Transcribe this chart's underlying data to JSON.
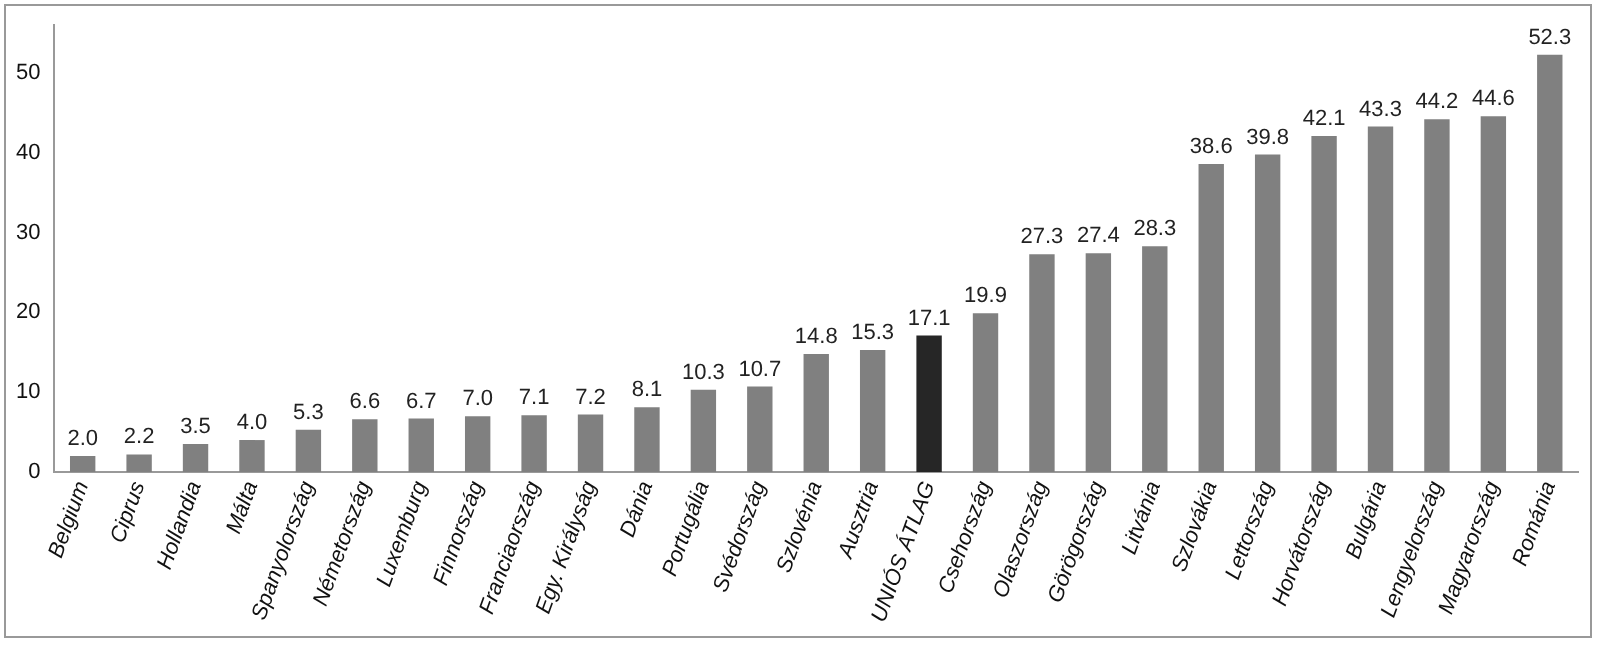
{
  "chart_data": {
    "type": "bar",
    "categories": [
      "Belgium",
      "Ciprus",
      "Hollandia",
      "Málta",
      "Spanyolország",
      "Németország",
      "Luxemburg",
      "Finnország",
      "Franciaország",
      "Egy. Királyság",
      "Dánia",
      "Portugália",
      "Svédország",
      "Szlovénia",
      "Ausztria",
      "UNIÓS ÁTLAG",
      "Csehország",
      "Olaszország",
      "Görögország",
      "Litvánia",
      "Szlovákia",
      "Lettország",
      "Horvátország",
      "Bulgária",
      "Lengyelország",
      "Magyarország",
      "Románia"
    ],
    "values": [
      2.0,
      2.2,
      3.5,
      4.0,
      5.3,
      6.6,
      6.7,
      7.0,
      7.1,
      7.2,
      8.1,
      10.3,
      10.7,
      14.8,
      15.3,
      17.1,
      19.9,
      27.3,
      27.4,
      28.3,
      38.6,
      39.8,
      42.1,
      43.3,
      44.2,
      44.6,
      52.3
    ],
    "value_labels": [
      "2.0",
      "2.2",
      "3.5",
      "4.0",
      "5.3",
      "6.6",
      "6.7",
      "7.0",
      "7.1",
      "7.2",
      "8.1",
      "10.3",
      "10.7",
      "14.8",
      "15.3",
      "17.1",
      "19.9",
      "27.3",
      "27.4",
      "28.3",
      "38.6",
      "39.8",
      "42.1",
      "43.3",
      "44.2",
      "44.6",
      "52.3"
    ],
    "colors": [
      "#808080",
      "#808080",
      "#808080",
      "#808080",
      "#808080",
      "#808080",
      "#808080",
      "#808080",
      "#808080",
      "#808080",
      "#808080",
      "#808080",
      "#808080",
      "#808080",
      "#808080",
      "#262626",
      "#808080",
      "#808080",
      "#808080",
      "#808080",
      "#808080",
      "#808080",
      "#808080",
      "#808080",
      "#808080",
      "#808080",
      "#808080"
    ],
    "ylim": [
      0,
      56
    ],
    "yticks": [
      0,
      10,
      20,
      30,
      40,
      50
    ],
    "grid": false,
    "legend": false
  }
}
